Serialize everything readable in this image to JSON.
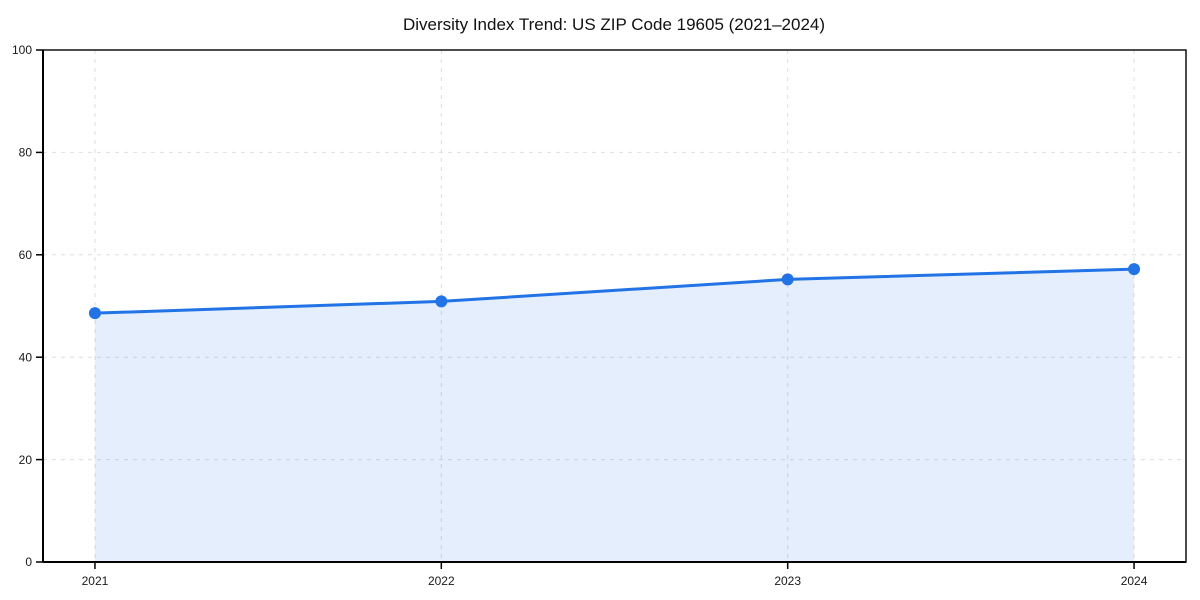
{
  "figure": {
    "background": "#ffffff"
  },
  "chart_data": {
    "type": "area",
    "title": "Diversity Index Trend: US ZIP Code 19605 (2021–2024)",
    "categories": [
      "2021",
      "2022",
      "2023",
      "2024"
    ],
    "values": [
      48.6,
      50.9,
      55.2,
      57.2
    ],
    "xlabel": "",
    "ylabel": "",
    "ylim": [
      0,
      100
    ],
    "yticks": [
      0,
      20,
      40,
      60,
      80,
      100
    ],
    "grid": "dashed, horizontal and vertical",
    "legend": "none",
    "marker": "circle",
    "colors": {
      "line": "#2173e6",
      "marker": "#2173e6",
      "area_fill": "rgba(33,115,230,0.12)",
      "gridline": "#dedede",
      "axis": "#000000",
      "tick_label": "#1a1a1a",
      "title": "#111111"
    }
  }
}
